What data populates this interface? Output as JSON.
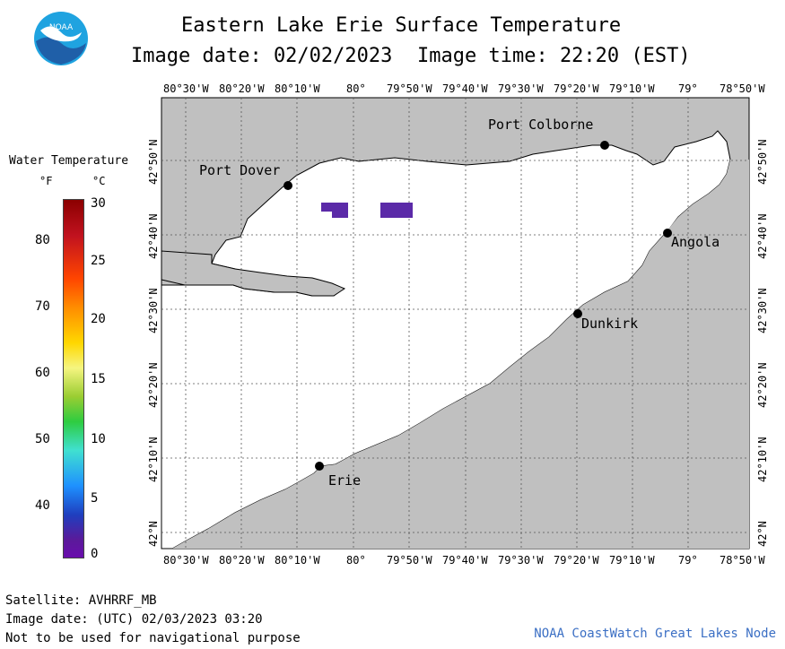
{
  "header": {
    "title": "Eastern Lake Erie Surface Temperature",
    "image_date": "Image date: 02/02/2023",
    "image_time": "Image time: 22:20 (EST)"
  },
  "logo": {
    "text": "NOAA",
    "icon": "noaa-logo"
  },
  "legend": {
    "title": "Water Temperature",
    "f_label": "°F",
    "c_label": "°C",
    "f_values": [
      "80",
      "70",
      "60",
      "50",
      "40"
    ],
    "c_values": [
      "30",
      "25",
      "20",
      "15",
      "10",
      "5",
      "0"
    ]
  },
  "axes": {
    "x_ticks_top": [
      "80°30'W",
      "80°20'W",
      "80°10'W",
      "80°",
      "79°50'W",
      "79°40'W",
      "79°30'W",
      "79°20'W",
      "79°10'W",
      "79°",
      "78°50'W"
    ],
    "x_ticks_bottom": [
      "80°30'W",
      "80°20'W",
      "80°10'W",
      "80°",
      "79°50'W",
      "79°40'W",
      "79°30'W",
      "79°20'W",
      "79°10'W",
      "79°",
      "78°50'W"
    ],
    "y_ticks": [
      "42°50'N",
      "42°40'N",
      "42°30'N",
      "42°20'N",
      "42°10'N",
      "42°N"
    ]
  },
  "places": {
    "port_colborne": "Port Colborne",
    "port_dover": "Port Dover",
    "angola": "Angola",
    "dunkirk": "Dunkirk",
    "erie": "Erie"
  },
  "footer": {
    "satellite": "Satellite: AVHRRF_MB",
    "utc_date": "Image date: (UTC) 02/03/2023  03:20",
    "disclaimer": "Not to be used for navigational purpose",
    "credit": "NOAA CoastWatch Great Lakes Node"
  },
  "colors": {
    "land": "#c0c0c0",
    "water": "#ffffff",
    "cold_pixels": "#5b2aa8",
    "credit": "#3b6fc4"
  }
}
